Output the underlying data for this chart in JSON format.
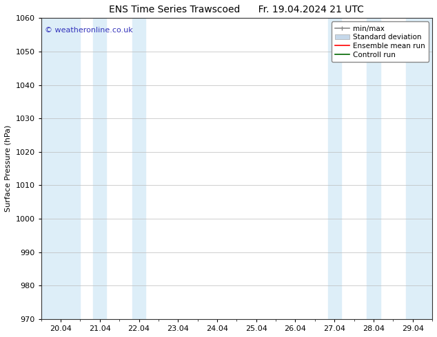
{
  "title_left": "ENS Time Series Trawscoed",
  "title_right": "Fr. 19.04.2024 21 UTC",
  "ylabel": "Surface Pressure (hPa)",
  "ylim": [
    970,
    1060
  ],
  "yticks": [
    970,
    980,
    990,
    1000,
    1010,
    1020,
    1030,
    1040,
    1050,
    1060
  ],
  "xtick_labels": [
    "20.04",
    "21.04",
    "22.04",
    "23.04",
    "24.04",
    "25.04",
    "26.04",
    "27.04",
    "28.04",
    "29.04"
  ],
  "xtick_positions": [
    0,
    1,
    2,
    3,
    4,
    5,
    6,
    7,
    8,
    9
  ],
  "xlim_start": -0.5,
  "xlim_end": 9.5,
  "shaded_bands": [
    {
      "x_start": -0.5,
      "x_end": 0.5,
      "color": "#ddeef8"
    },
    {
      "x_start": 0.83,
      "x_end": 1.17,
      "color": "#ddeef8"
    },
    {
      "x_start": 1.83,
      "x_end": 2.17,
      "color": "#ddeef8"
    },
    {
      "x_start": 6.83,
      "x_end": 7.17,
      "color": "#ddeef8"
    },
    {
      "x_start": 7.83,
      "x_end": 8.17,
      "color": "#ddeef8"
    },
    {
      "x_start": 8.83,
      "x_end": 9.5,
      "color": "#ddeef8"
    }
  ],
  "legend_items": [
    {
      "label": "min/max",
      "color": "#aaaaaa",
      "type": "errorbar"
    },
    {
      "label": "Standard deviation",
      "color": "#c5d8ea",
      "type": "band"
    },
    {
      "label": "Ensemble mean run",
      "color": "red",
      "type": "line"
    },
    {
      "label": "Controll run",
      "color": "green",
      "type": "line"
    }
  ],
  "watermark": "© weatheronline.co.uk",
  "watermark_color": "#3333bb",
  "bg_color": "#ffffff",
  "plot_bg_color": "#ffffff",
  "grid_color": "#bbbbbb",
  "tick_color": "#000000",
  "title_fontsize": 10,
  "label_fontsize": 8,
  "tick_fontsize": 8,
  "legend_fontsize": 7.5
}
